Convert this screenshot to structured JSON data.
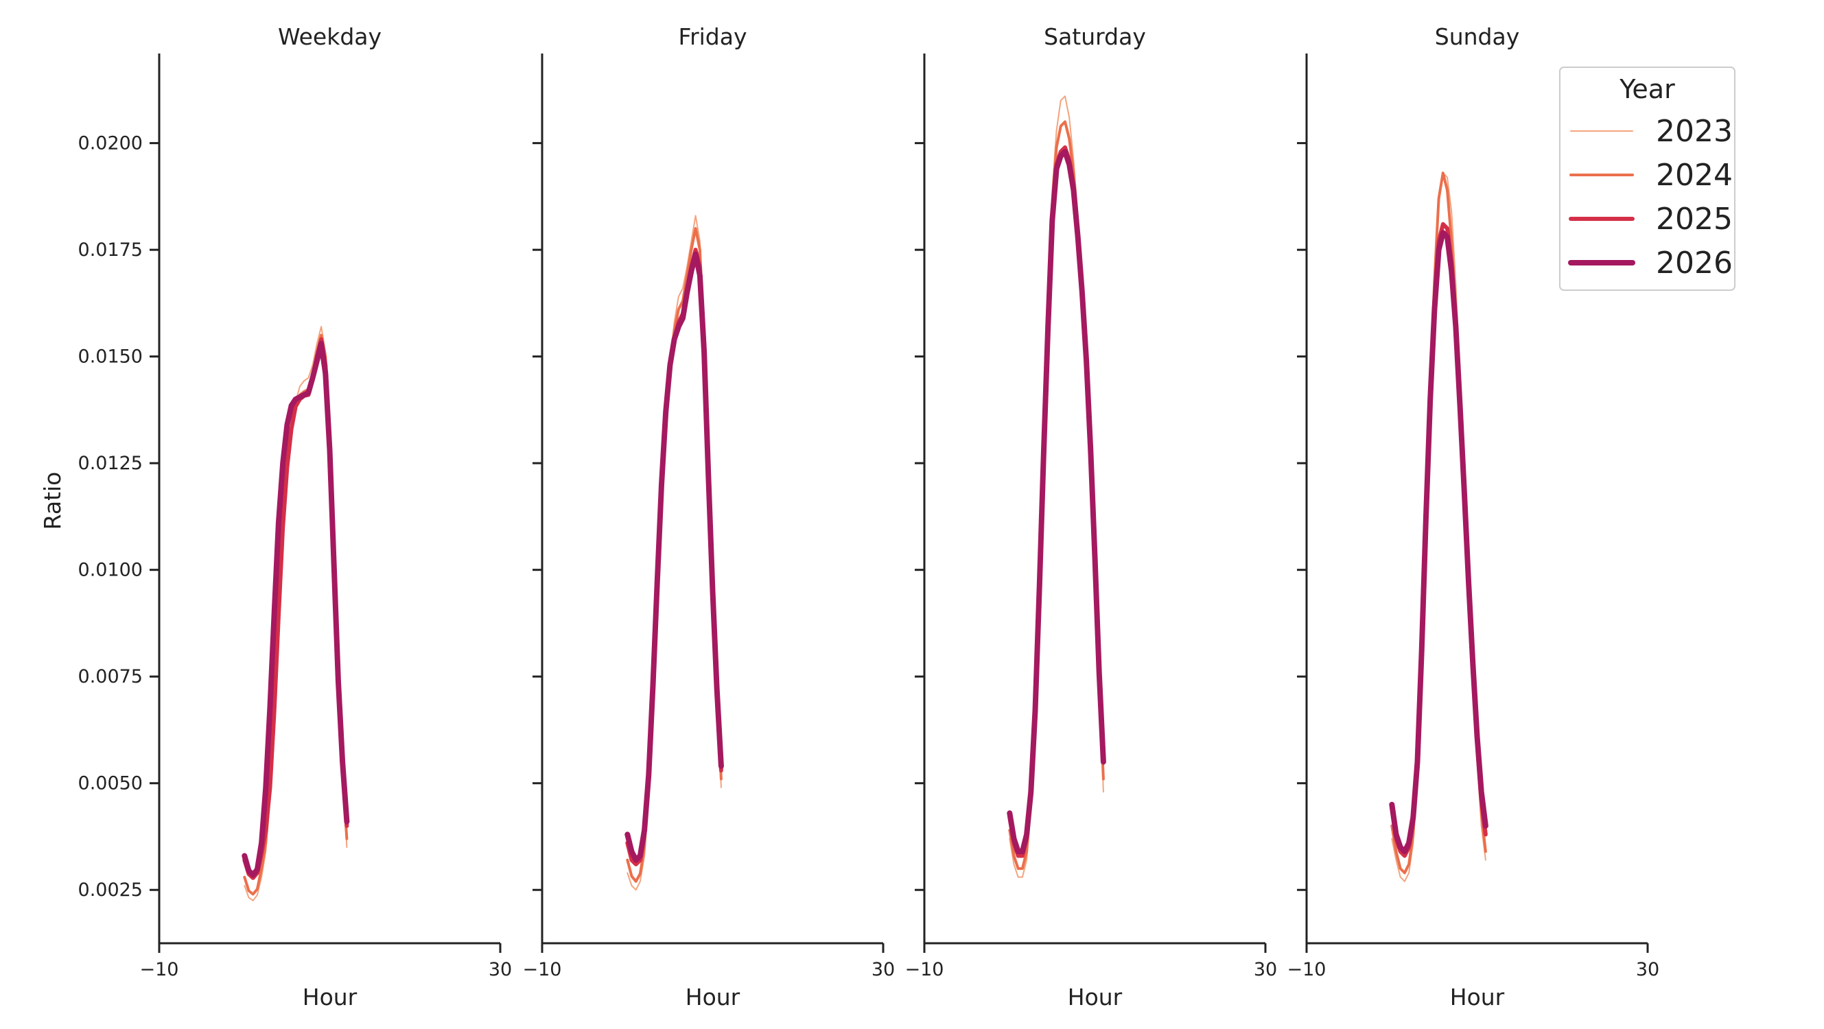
{
  "chart_data": {
    "type": "line",
    "ylabel": "Ratio",
    "xlabel": "Hour",
    "xlim": [
      -10,
      30
    ],
    "ylim": [
      0.00125,
      0.0221
    ],
    "xticks": [
      -10,
      30
    ],
    "xtick_labels": [
      "−10",
      "30"
    ],
    "yticks": [
      0.0025,
      0.005,
      0.0075,
      0.01,
      0.0125,
      0.015,
      0.0175,
      0.02
    ],
    "ytick_labels": [
      "0.0025",
      "0.0050",
      "0.0075",
      "0.0100",
      "0.0125",
      "0.0150",
      "0.0175",
      "0.0200"
    ],
    "grid": false,
    "legend": {
      "title": "Year",
      "placement": "top-right"
    },
    "series_styles": [
      {
        "name": "2023",
        "color": "#f3a47e",
        "width": 2
      },
      {
        "name": "2024",
        "color": "#eb6f4c",
        "width": 4
      },
      {
        "name": "2025",
        "color": "#d52f48",
        "width": 6
      },
      {
        "name": "2026",
        "color": "#a4195f",
        "width": 8
      }
    ],
    "x": [
      0,
      0.5,
      1,
      1.5,
      2,
      2.5,
      3,
      3.5,
      4,
      4.5,
      5,
      5.5,
      6,
      6.5,
      7,
      7.5,
      8,
      8.5,
      9,
      9.5,
      10,
      10.5,
      11,
      11.5,
      12,
      12.5,
      13,
      13.5,
      14,
      14.5,
      15,
      15.5,
      16,
      16.5,
      17,
      17.5,
      18,
      18.5,
      19,
      19.5,
      20,
      20.5,
      21,
      21.5,
      22,
      22.5,
      23
    ],
    "panels": [
      {
        "title": "Weekday",
        "series": [
          {
            "name": "2023",
            "values": [
              0.0026,
              0.00232,
              0.00225,
              0.00238,
              0.0028,
              0.0034,
              0.0047,
              0.0066,
              0.0088,
              0.0109,
              0.0124,
              0.0133,
              0.01395,
              0.0143,
              0.01443,
              0.0145,
              0.0148,
              0.0153,
              0.0157,
              0.0151,
              0.0134,
              0.0107,
              0.0077,
              0.0053,
              0.0035,
              null,
              null,
              null,
              null,
              null,
              null,
              null,
              null,
              null,
              null,
              null,
              null,
              null,
              null,
              null,
              null,
              null,
              null,
              null,
              null,
              null,
              null
            ]
          },
          {
            "name": "2024",
            "values": [
              0.0028,
              0.00248,
              0.0024,
              0.00252,
              0.003,
              0.0036,
              0.0048,
              0.0067,
              0.0089,
              0.011,
              0.0124,
              0.0133,
              0.0138,
              0.0141,
              0.01418,
              0.01423,
              0.0146,
              0.0151,
              0.0155,
              0.015,
              0.0132,
              0.0105,
              0.0075,
              0.0052,
              0.0037,
              null,
              null,
              null,
              null,
              null,
              null,
              null,
              null,
              null,
              null,
              null,
              null,
              null,
              null,
              null,
              null,
              null,
              null,
              null,
              null,
              null,
              null
            ]
          },
          {
            "name": "2025",
            "values": [
              0.0032,
              0.00287,
              0.00278,
              0.0029,
              0.00335,
              0.0039,
              0.0049,
              0.0067,
              0.0089,
              0.011,
              0.0124,
              0.0133,
              0.01383,
              0.014,
              0.01408,
              0.0141,
              0.0145,
              0.015,
              0.0154,
              0.0148,
              0.013,
              0.0104,
              0.0074,
              0.0054,
              0.004,
              null,
              null,
              null,
              null,
              null,
              null,
              null,
              null,
              null,
              null,
              null,
              null,
              null,
              null,
              null,
              null,
              null,
              null,
              null,
              null,
              null,
              null
            ]
          },
          {
            "name": "2026",
            "values": [
              0.0033,
              0.00295,
              0.00285,
              0.00298,
              0.0036,
              0.0049,
              0.0068,
              0.009,
              0.0111,
              0.0125,
              0.0134,
              0.01385,
              0.014,
              0.01405,
              0.0141,
              0.01415,
              0.0145,
              0.0149,
              0.0153,
              0.0146,
              0.0128,
              0.0101,
              0.0074,
              0.0055,
              0.0041,
              null,
              null,
              null,
              null,
              null,
              null,
              null,
              null,
              null,
              null,
              null,
              null,
              null,
              null,
              null,
              null,
              null,
              null,
              null,
              null,
              null,
              null
            ]
          }
        ]
      },
      {
        "title": "Friday",
        "series": [
          {
            "name": "2023",
            "values": [
              0.0029,
              0.0026,
              0.0025,
              0.0027,
              0.0033,
              0.0048,
              0.007,
              0.0096,
              0.0121,
              0.0138,
              0.0149,
              0.0158,
              0.0164,
              0.0166,
              0.0171,
              0.0177,
              0.0183,
              0.0177,
              0.0155,
              0.0125,
              0.0096,
              0.0072,
              0.0049,
              null,
              null,
              null,
              null,
              null,
              null,
              null,
              null,
              null,
              null,
              null,
              null,
              null,
              null,
              null,
              null,
              null,
              null,
              null,
              null,
              null,
              null,
              null,
              null
            ]
          },
          {
            "name": "2024",
            "values": [
              0.0032,
              0.00282,
              0.0027,
              0.00288,
              0.0035,
              0.005,
              0.0072,
              0.0097,
              0.0121,
              0.0138,
              0.0148,
              0.0156,
              0.0161,
              0.0163,
              0.0169,
              0.0175,
              0.018,
              0.0175,
              0.0153,
              0.0123,
              0.0095,
              0.0071,
              0.0051,
              null,
              null,
              null,
              null,
              null,
              null,
              null,
              null,
              null,
              null,
              null,
              null,
              null,
              null,
              null,
              null,
              null,
              null,
              null,
              null,
              null,
              null,
              null,
              null
            ]
          },
          {
            "name": "2025",
            "values": [
              0.0036,
              0.0032,
              0.0031,
              0.0032,
              0.0038,
              0.0052,
              0.0073,
              0.0097,
              0.012,
              0.0137,
              0.0148,
              0.0154,
              0.0158,
              0.016,
              0.0166,
              0.0171,
              0.0175,
              0.0171,
              0.0152,
              0.0122,
              0.0095,
              0.0071,
              0.0053,
              null,
              null,
              null,
              null,
              null,
              null,
              null,
              null,
              null,
              null,
              null,
              null,
              null,
              null,
              null,
              null,
              null,
              null,
              null,
              null,
              null,
              null,
              null,
              null
            ]
          },
          {
            "name": "2026",
            "values": [
              0.0038,
              0.0034,
              0.0032,
              0.0033,
              0.0039,
              0.0052,
              0.0073,
              0.0097,
              0.012,
              0.0137,
              0.0148,
              0.0154,
              0.0157,
              0.0159,
              0.0165,
              0.017,
              0.0174,
              0.0169,
              0.0151,
              0.0122,
              0.0095,
              0.0072,
              0.0054,
              null,
              null,
              null,
              null,
              null,
              null,
              null,
              null,
              null,
              null,
              null,
              null,
              null,
              null,
              null,
              null,
              null,
              null,
              null,
              null,
              null,
              null,
              null,
              null
            ]
          }
        ]
      },
      {
        "title": "Saturday",
        "series": [
          {
            "name": "2023",
            "values": [
              0.0037,
              0.0031,
              0.0028,
              0.0028,
              0.0032,
              0.0044,
              0.0064,
              0.0094,
              0.0128,
              0.0162,
              0.0189,
              0.0203,
              0.021,
              0.0211,
              0.0206,
              0.0196,
              0.0183,
              0.0168,
              0.015,
              0.0128,
              0.0102,
              0.0074,
              0.0048,
              null,
              null,
              null,
              null,
              null,
              null,
              null,
              null,
              null,
              null,
              null,
              null,
              null,
              null,
              null,
              null,
              null,
              null,
              null,
              null,
              null,
              null,
              null,
              null
            ]
          },
          {
            "name": "2024",
            "values": [
              0.0039,
              0.0033,
              0.003,
              0.003,
              0.0034,
              0.0046,
              0.0066,
              0.0095,
              0.0128,
              0.016,
              0.0186,
              0.0199,
              0.0204,
              0.0205,
              0.0201,
              0.0193,
              0.0181,
              0.0167,
              0.0149,
              0.0128,
              0.0102,
              0.0075,
              0.0051,
              null,
              null,
              null,
              null,
              null,
              null,
              null,
              null,
              null,
              null,
              null,
              null,
              null,
              null,
              null,
              null,
              null,
              null,
              null,
              null,
              null,
              null,
              null,
              null
            ]
          },
          {
            "name": "2025",
            "values": [
              0.0042,
              0.0036,
              0.0033,
              0.0033,
              0.0037,
              0.0048,
              0.0067,
              0.0096,
              0.0128,
              0.0158,
              0.0183,
              0.0195,
              0.0198,
              0.0199,
              0.0196,
              0.019,
              0.0179,
              0.0166,
              0.0149,
              0.0128,
              0.0103,
              0.0076,
              0.0055,
              null,
              null,
              null,
              null,
              null,
              null,
              null,
              null,
              null,
              null,
              null,
              null,
              null,
              null,
              null,
              null,
              null,
              null,
              null,
              null,
              null,
              null,
              null,
              null
            ]
          },
          {
            "name": "2026",
            "values": [
              0.0043,
              0.0037,
              0.0034,
              0.0034,
              0.0038,
              0.0048,
              0.0067,
              0.0096,
              0.0128,
              0.0157,
              0.0182,
              0.0194,
              0.0197,
              0.0198,
              0.0195,
              0.0189,
              0.0178,
              0.0165,
              0.0149,
              0.0128,
              0.0103,
              0.0076,
              0.0055,
              null,
              null,
              null,
              null,
              null,
              null,
              null,
              null,
              null,
              null,
              null,
              null,
              null,
              null,
              null,
              null,
              null,
              null,
              null,
              null,
              null,
              null,
              null,
              null
            ]
          }
        ]
      },
      {
        "title": "Sunday",
        "series": [
          {
            "name": "2023",
            "values": [
              0.0037,
              0.0032,
              0.0028,
              0.0027,
              0.0029,
              0.0036,
              0.0052,
              0.0079,
              0.0112,
              0.0143,
              0.0168,
              0.0186,
              0.0193,
              0.0192,
              0.0184,
              0.0167,
              0.0145,
              0.0122,
              0.0098,
              0.0076,
              0.0056,
              0.004,
              0.0032,
              null,
              null,
              null,
              null,
              null,
              null,
              null,
              null,
              null,
              null,
              null,
              null,
              null,
              null,
              null,
              null,
              null,
              null,
              null,
              null,
              null,
              null,
              null,
              null
            ]
          },
          {
            "name": "2024",
            "values": [
              0.004,
              0.0034,
              0.003,
              0.0029,
              0.0031,
              0.0038,
              0.0053,
              0.008,
              0.0112,
              0.0143,
              0.0168,
              0.0187,
              0.0193,
              0.0189,
              0.0177,
              0.0161,
              0.0141,
              0.0119,
              0.0097,
              0.0076,
              0.0057,
              0.0043,
              0.0034,
              null,
              null,
              null,
              null,
              null,
              null,
              null,
              null,
              null,
              null,
              null,
              null,
              null,
              null,
              null,
              null,
              null,
              null,
              null,
              null,
              null,
              null,
              null,
              null
            ]
          },
          {
            "name": "2025",
            "values": [
              0.0044,
              0.0037,
              0.0034,
              0.0033,
              0.0035,
              0.0041,
              0.0055,
              0.0081,
              0.0112,
              0.0141,
              0.0163,
              0.0177,
              0.0181,
              0.018,
              0.0172,
              0.0158,
              0.0139,
              0.0118,
              0.0097,
              0.0077,
              0.006,
              0.0046,
              0.0038,
              null,
              null,
              null,
              null,
              null,
              null,
              null,
              null,
              null,
              null,
              null,
              null,
              null,
              null,
              null,
              null,
              null,
              null,
              null,
              null,
              null,
              null,
              null,
              null
            ]
          },
          {
            "name": "2026",
            "values": [
              0.0045,
              0.0038,
              0.0035,
              0.0034,
              0.0036,
              0.0042,
              0.0055,
              0.0081,
              0.0112,
              0.014,
              0.0161,
              0.0175,
              0.0179,
              0.0178,
              0.017,
              0.0157,
              0.0138,
              0.0118,
              0.0097,
              0.0078,
              0.0061,
              0.0048,
              0.004,
              null,
              null,
              null,
              null,
              null,
              null,
              null,
              null,
              null,
              null,
              null,
              null,
              null,
              null,
              null,
              null,
              null,
              null,
              null,
              null,
              null,
              null,
              null,
              null
            ]
          }
        ]
      }
    ]
  }
}
